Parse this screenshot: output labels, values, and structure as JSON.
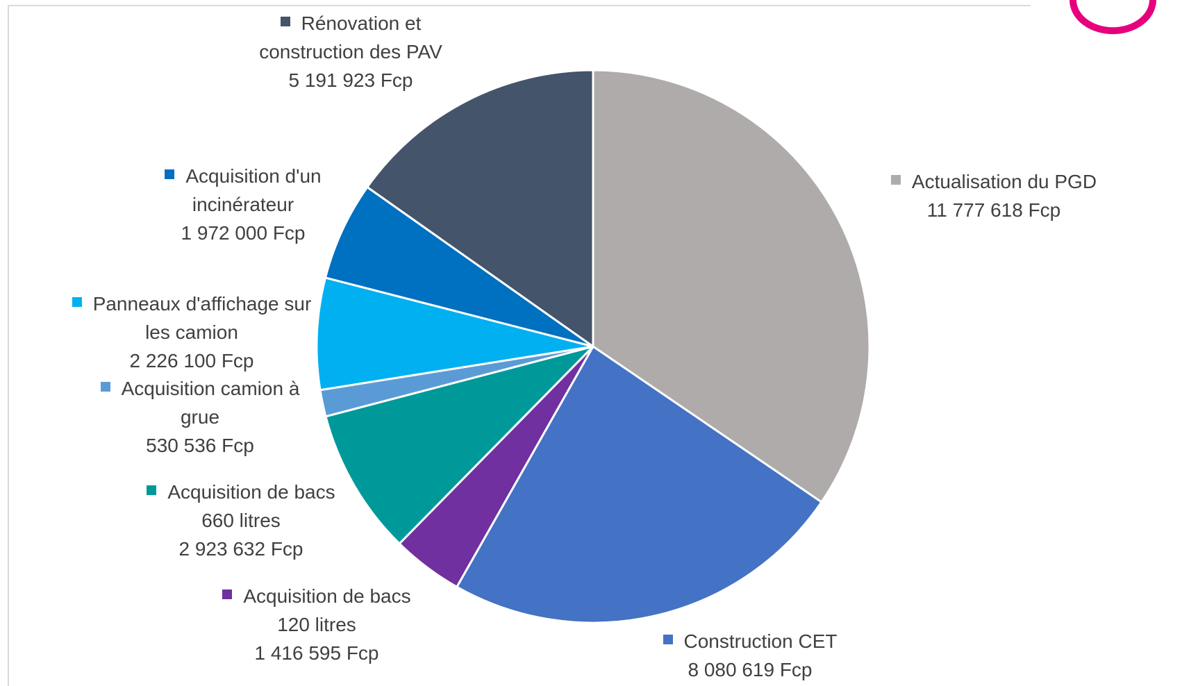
{
  "chart_data": {
    "type": "pie",
    "categories": [
      "Actualisation du PGD",
      "Construction CET",
      "Acquisition de bacs 120 litres",
      "Acquisition de bacs 660 litres",
      "Acquisition camion à grue",
      "Panneaux d'affichage sur les camion",
      "Acquisition d'un incinérateur",
      "Rénovation et construction des PAV"
    ],
    "values": [
      11777618,
      8080619,
      1416595,
      2923632,
      530536,
      2226100,
      1972000,
      5191923
    ],
    "value_labels": [
      "11 777 618 Fcp",
      "8 080 619 Fcp",
      "1 416 595 Fcp",
      "2 923 632 Fcp",
      "530 536 Fcp",
      "2 226 100 Fcp",
      "1 972 000 Fcp",
      "5 191 923 Fcp"
    ],
    "colors": [
      "#afabab",
      "#4472c4",
      "#7030a0",
      "#009999",
      "#5b9bd5",
      "#00b0f0",
      "#0070c0",
      "#44546a"
    ]
  }
}
